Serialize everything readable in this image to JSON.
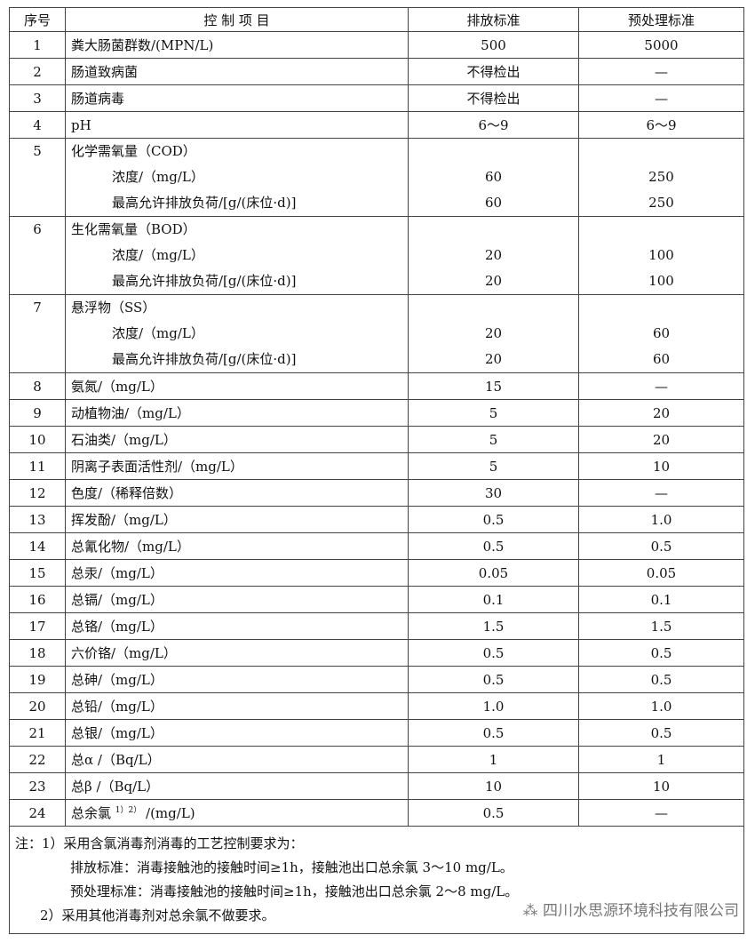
{
  "headers": [
    "序号",
    "控 制 项 目",
    "排放标准",
    "预处理标准"
  ],
  "rows": [
    {
      "no": "1",
      "item": "粪大肠菌群数/(MPN/L)",
      "discharge": "500",
      "pre": "5000"
    },
    {
      "no": "2",
      "item": "肠道致病菌",
      "discharge": "不得检出",
      "pre": "—"
    },
    {
      "no": "3",
      "item": "肠道病毒",
      "discharge": "不得检出",
      "pre": "—"
    },
    {
      "no": "4",
      "item": "pH",
      "discharge": "6～9",
      "pre": "6～9"
    },
    {
      "no": "5",
      "item": "化学需氧量（COD）",
      "sub": [
        {
          "item": "浓度/（mg/L）",
          "discharge": "60",
          "pre": "250"
        },
        {
          "item": "最高允许排放负荷/[g/(床位·d)]",
          "discharge": "60",
          "pre": "250"
        }
      ]
    },
    {
      "no": "6",
      "item": "生化需氧量（BOD）",
      "sub": [
        {
          "item": "浓度/（mg/L）",
          "discharge": "20",
          "pre": "100"
        },
        {
          "item": "最高允许排放负荷/[g/(床位·d)]",
          "discharge": "20",
          "pre": "100"
        }
      ]
    },
    {
      "no": "7",
      "item": "悬浮物（SS）",
      "sub": [
        {
          "item": "浓度/（mg/L）",
          "discharge": "20",
          "pre": "60"
        },
        {
          "item": "最高允许排放负荷/[g/(床位·d)]",
          "discharge": "20",
          "pre": "60"
        }
      ]
    },
    {
      "no": "8",
      "item": "氨氮/（mg/L）",
      "discharge": "15",
      "pre": "—"
    },
    {
      "no": "9",
      "item": "动植物油/（mg/L）",
      "discharge": "5",
      "pre": "20"
    },
    {
      "no": "10",
      "item": "石油类/（mg/L）",
      "discharge": "5",
      "pre": "20"
    },
    {
      "no": "11",
      "item": "阴离子表面活性剂/（mg/L）",
      "discharge": "5",
      "pre": "10"
    },
    {
      "no": "12",
      "item": "色度/（稀释倍数）",
      "discharge": "30",
      "pre": "—"
    },
    {
      "no": "13",
      "item": "挥发酚/（mg/L）",
      "discharge": "0.5",
      "pre": "1.0"
    },
    {
      "no": "14",
      "item": "总氰化物/（mg/L）",
      "discharge": "0.5",
      "pre": "0.5"
    },
    {
      "no": "15",
      "item": "总汞/（mg/L）",
      "discharge": "0.05",
      "pre": "0.05"
    },
    {
      "no": "16",
      "item": "总镉/（mg/L）",
      "discharge": "0.1",
      "pre": "0.1"
    },
    {
      "no": "17",
      "item": "总铬/（mg/L）",
      "discharge": "1.5",
      "pre": "1.5"
    },
    {
      "no": "18",
      "item": "六价铬/（mg/L）",
      "discharge": "0.5",
      "pre": "0.5"
    },
    {
      "no": "19",
      "item": "总砷/（mg/L）",
      "discharge": "0.5",
      "pre": "0.5"
    },
    {
      "no": "20",
      "item": "总铅/（mg/L）",
      "discharge": "1.0",
      "pre": "1.0"
    },
    {
      "no": "21",
      "item": "总银/（mg/L）",
      "discharge": "0.5",
      "pre": "0.5"
    },
    {
      "no": "22",
      "item": "总α /（Bq/L）",
      "discharge": "1",
      "pre": "1"
    },
    {
      "no": "23",
      "item": "总β /（Bq/L）",
      "discharge": "10",
      "pre": "10"
    },
    {
      "no": "24",
      "item": "总余氯",
      "sup": "1）2）",
      "unit": "/(mg/L)",
      "discharge": "0.5",
      "pre": "—"
    }
  ],
  "notes": [
    "注：1）采用含氯消毒剂消毒的工艺控制要求为：",
    "排放标准：消毒接触池的接触时间≥1h，接触池出口总余氯 3～10 mg/L。",
    "预处理标准：消毒接触池的接触时间≥1h，接触池出口总余氯 2～8 mg/L。",
    "2）采用其他消毒剂对总余氯不做要求。"
  ],
  "watermark": "四川水思源环境科技有限公司"
}
